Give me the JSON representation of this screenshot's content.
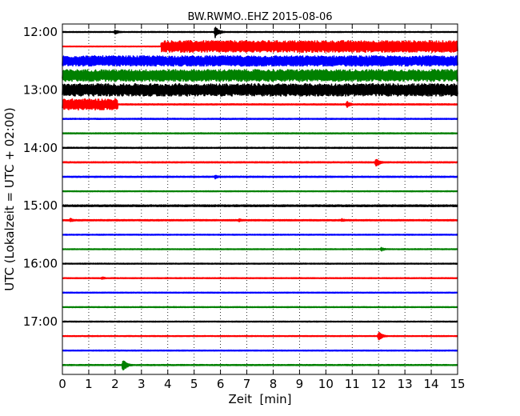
{
  "chart_data": {
    "type": "line",
    "title": "BW.RWMO..EHZ 2015-08-06",
    "xlabel": "Zeit  [min]",
    "ylabel": "UTC (Lokalzeit = UTC + 02:00)",
    "xlim": [
      0,
      15
    ],
    "x_ticks": [
      "0",
      "1",
      "2",
      "3",
      "4",
      "5",
      "6",
      "7",
      "8",
      "9",
      "10",
      "11",
      "12",
      "13",
      "14",
      "15"
    ],
    "y_ticks": [
      "12:00",
      "13:00",
      "14:00",
      "15:00",
      "16:00",
      "17:00"
    ],
    "grid": "vertical dotted lines at each minute",
    "colors": [
      "#000000",
      "#ff0000",
      "#0000ff",
      "#008000"
    ],
    "traces": [
      {
        "start": "12:00",
        "color": "#000000",
        "amplitude": 0.06,
        "events": [
          {
            "t": 2.0,
            "amp": 0.35
          },
          {
            "t": 5.8,
            "amp": 0.9
          }
        ]
      },
      {
        "start": "12:15",
        "color": "#ff0000",
        "amplitude": 0.05,
        "bands": [
          {
            "from": 3.75,
            "to": 15,
            "amp": 0.85
          }
        ]
      },
      {
        "start": "12:30",
        "color": "#0000ff",
        "amplitude": 0.75,
        "bands": [
          {
            "from": 0,
            "to": 15,
            "amp": 0.75
          }
        ]
      },
      {
        "start": "12:45",
        "color": "#008000",
        "amplitude": 0.85,
        "bands": [
          {
            "from": 0,
            "to": 15,
            "amp": 0.85
          }
        ]
      },
      {
        "start": "13:00",
        "color": "#000000",
        "amplitude": 0.9,
        "bands": [
          {
            "from": 0,
            "to": 15,
            "amp": 0.9
          }
        ]
      },
      {
        "start": "13:15",
        "color": "#ff0000",
        "amplitude": 0.08,
        "bands": [
          {
            "from": 0,
            "to": 2.1,
            "amp": 0.8
          }
        ],
        "events": [
          {
            "t": 10.8,
            "amp": 0.5
          }
        ]
      },
      {
        "start": "13:30",
        "color": "#0000ff",
        "amplitude": 0.07
      },
      {
        "start": "13:45",
        "color": "#008000",
        "amplitude": 0.07
      },
      {
        "start": "14:00",
        "color": "#000000",
        "amplitude": 0.07
      },
      {
        "start": "14:15",
        "color": "#ff0000",
        "amplitude": 0.08,
        "events": [
          {
            "t": 11.9,
            "amp": 0.7
          }
        ]
      },
      {
        "start": "14:30",
        "color": "#0000ff",
        "amplitude": 0.08,
        "events": [
          {
            "t": 5.8,
            "amp": 0.3
          }
        ]
      },
      {
        "start": "14:45",
        "color": "#008000",
        "amplitude": 0.06
      },
      {
        "start": "15:00",
        "color": "#000000",
        "amplitude": 0.12
      },
      {
        "start": "15:15",
        "color": "#ff0000",
        "amplitude": 0.09,
        "events": [
          {
            "t": 0.3,
            "amp": 0.3
          },
          {
            "t": 6.7,
            "amp": 0.25
          },
          {
            "t": 10.6,
            "amp": 0.25
          }
        ]
      },
      {
        "start": "15:30",
        "color": "#0000ff",
        "amplitude": 0.06
      },
      {
        "start": "15:45",
        "color": "#008000",
        "amplitude": 0.06,
        "events": [
          {
            "t": 12.1,
            "amp": 0.3
          }
        ]
      },
      {
        "start": "16:00",
        "color": "#000000",
        "amplitude": 0.06
      },
      {
        "start": "16:15",
        "color": "#ff0000",
        "amplitude": 0.06,
        "events": [
          {
            "t": 1.5,
            "amp": 0.2
          }
        ]
      },
      {
        "start": "16:30",
        "color": "#0000ff",
        "amplitude": 0.06
      },
      {
        "start": "16:45",
        "color": "#008000",
        "amplitude": 0.06
      },
      {
        "start": "17:00",
        "color": "#000000",
        "amplitude": 0.06
      },
      {
        "start": "17:15",
        "color": "#ff0000",
        "amplitude": 0.06,
        "events": [
          {
            "t": 12.0,
            "amp": 0.7
          }
        ]
      },
      {
        "start": "17:30",
        "color": "#0000ff",
        "amplitude": 0.06
      },
      {
        "start": "17:45",
        "color": "#008000",
        "amplitude": 0.07,
        "events": [
          {
            "t": 2.3,
            "amp": 1.0
          }
        ]
      }
    ]
  }
}
